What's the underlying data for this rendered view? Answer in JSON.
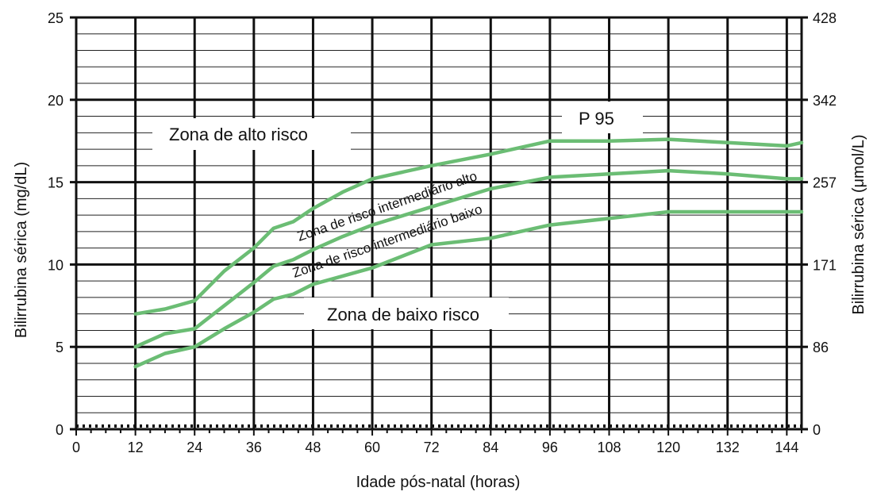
{
  "chart_data": {
    "type": "line",
    "xlabel": "Idade pós-natal (horas)",
    "ylabel": "Bilirrubina sérica (mg/dL)",
    "ylabel_right": "Bilirrubina sérica (μmol/L)",
    "xlim": [
      0,
      147
    ],
    "ylim": [
      0,
      25
    ],
    "x_ticks": [
      "0",
      "12",
      "24",
      "36",
      "48",
      "60",
      "72",
      "84",
      "96",
      "108",
      "120",
      "132",
      "144"
    ],
    "y_ticks": [
      "0",
      "5",
      "10",
      "15",
      "20",
      "25"
    ],
    "y_ticks_right": [
      {
        "value": 0,
        "label": "0"
      },
      {
        "value": 5,
        "label": "86"
      },
      {
        "value": 10,
        "label": "171"
      },
      {
        "value": 15,
        "label": "257"
      },
      {
        "value": 20,
        "label": "342"
      },
      {
        "value": 25,
        "label": "428"
      }
    ],
    "grid": true,
    "series": [
      {
        "name": "P 95",
        "color": "#6bbd74",
        "x": [
          12,
          18,
          24,
          30,
          36,
          40,
          44,
          48,
          54,
          60,
          72,
          84,
          96,
          108,
          120,
          132,
          144,
          147
        ],
        "y": [
          7.0,
          7.3,
          7.8,
          9.6,
          11.0,
          12.2,
          12.6,
          13.4,
          14.4,
          15.2,
          16.0,
          16.7,
          17.5,
          17.5,
          17.6,
          17.4,
          17.2,
          17.4
        ]
      },
      {
        "name": "",
        "color": "#6bbd74",
        "x": [
          12,
          18,
          24,
          30,
          36,
          40,
          44,
          48,
          54,
          60,
          72,
          84,
          96,
          108,
          120,
          132,
          144,
          147
        ],
        "y": [
          5.0,
          5.8,
          6.1,
          7.5,
          8.9,
          9.9,
          10.3,
          10.9,
          11.7,
          12.4,
          13.5,
          14.6,
          15.3,
          15.5,
          15.7,
          15.5,
          15.2,
          15.2
        ]
      },
      {
        "name": "",
        "color": "#6bbd74",
        "x": [
          12,
          18,
          24,
          30,
          36,
          40,
          44,
          48,
          54,
          60,
          72,
          84,
          96,
          108,
          120,
          132,
          144,
          147
        ],
        "y": [
          3.8,
          4.6,
          5.0,
          6.1,
          7.1,
          7.9,
          8.2,
          8.8,
          9.3,
          9.8,
          11.2,
          11.6,
          12.4,
          12.8,
          13.2,
          13.2,
          13.2,
          13.2
        ]
      }
    ],
    "annotations": {
      "p95_label": "P 95",
      "high_risk": "Zona de alto risco",
      "high_intermediate": "Zona de risco intermediário alto",
      "low_intermediate": "Zona de risco intermediário baixo",
      "low_risk": "Zona de baixo risco"
    }
  }
}
